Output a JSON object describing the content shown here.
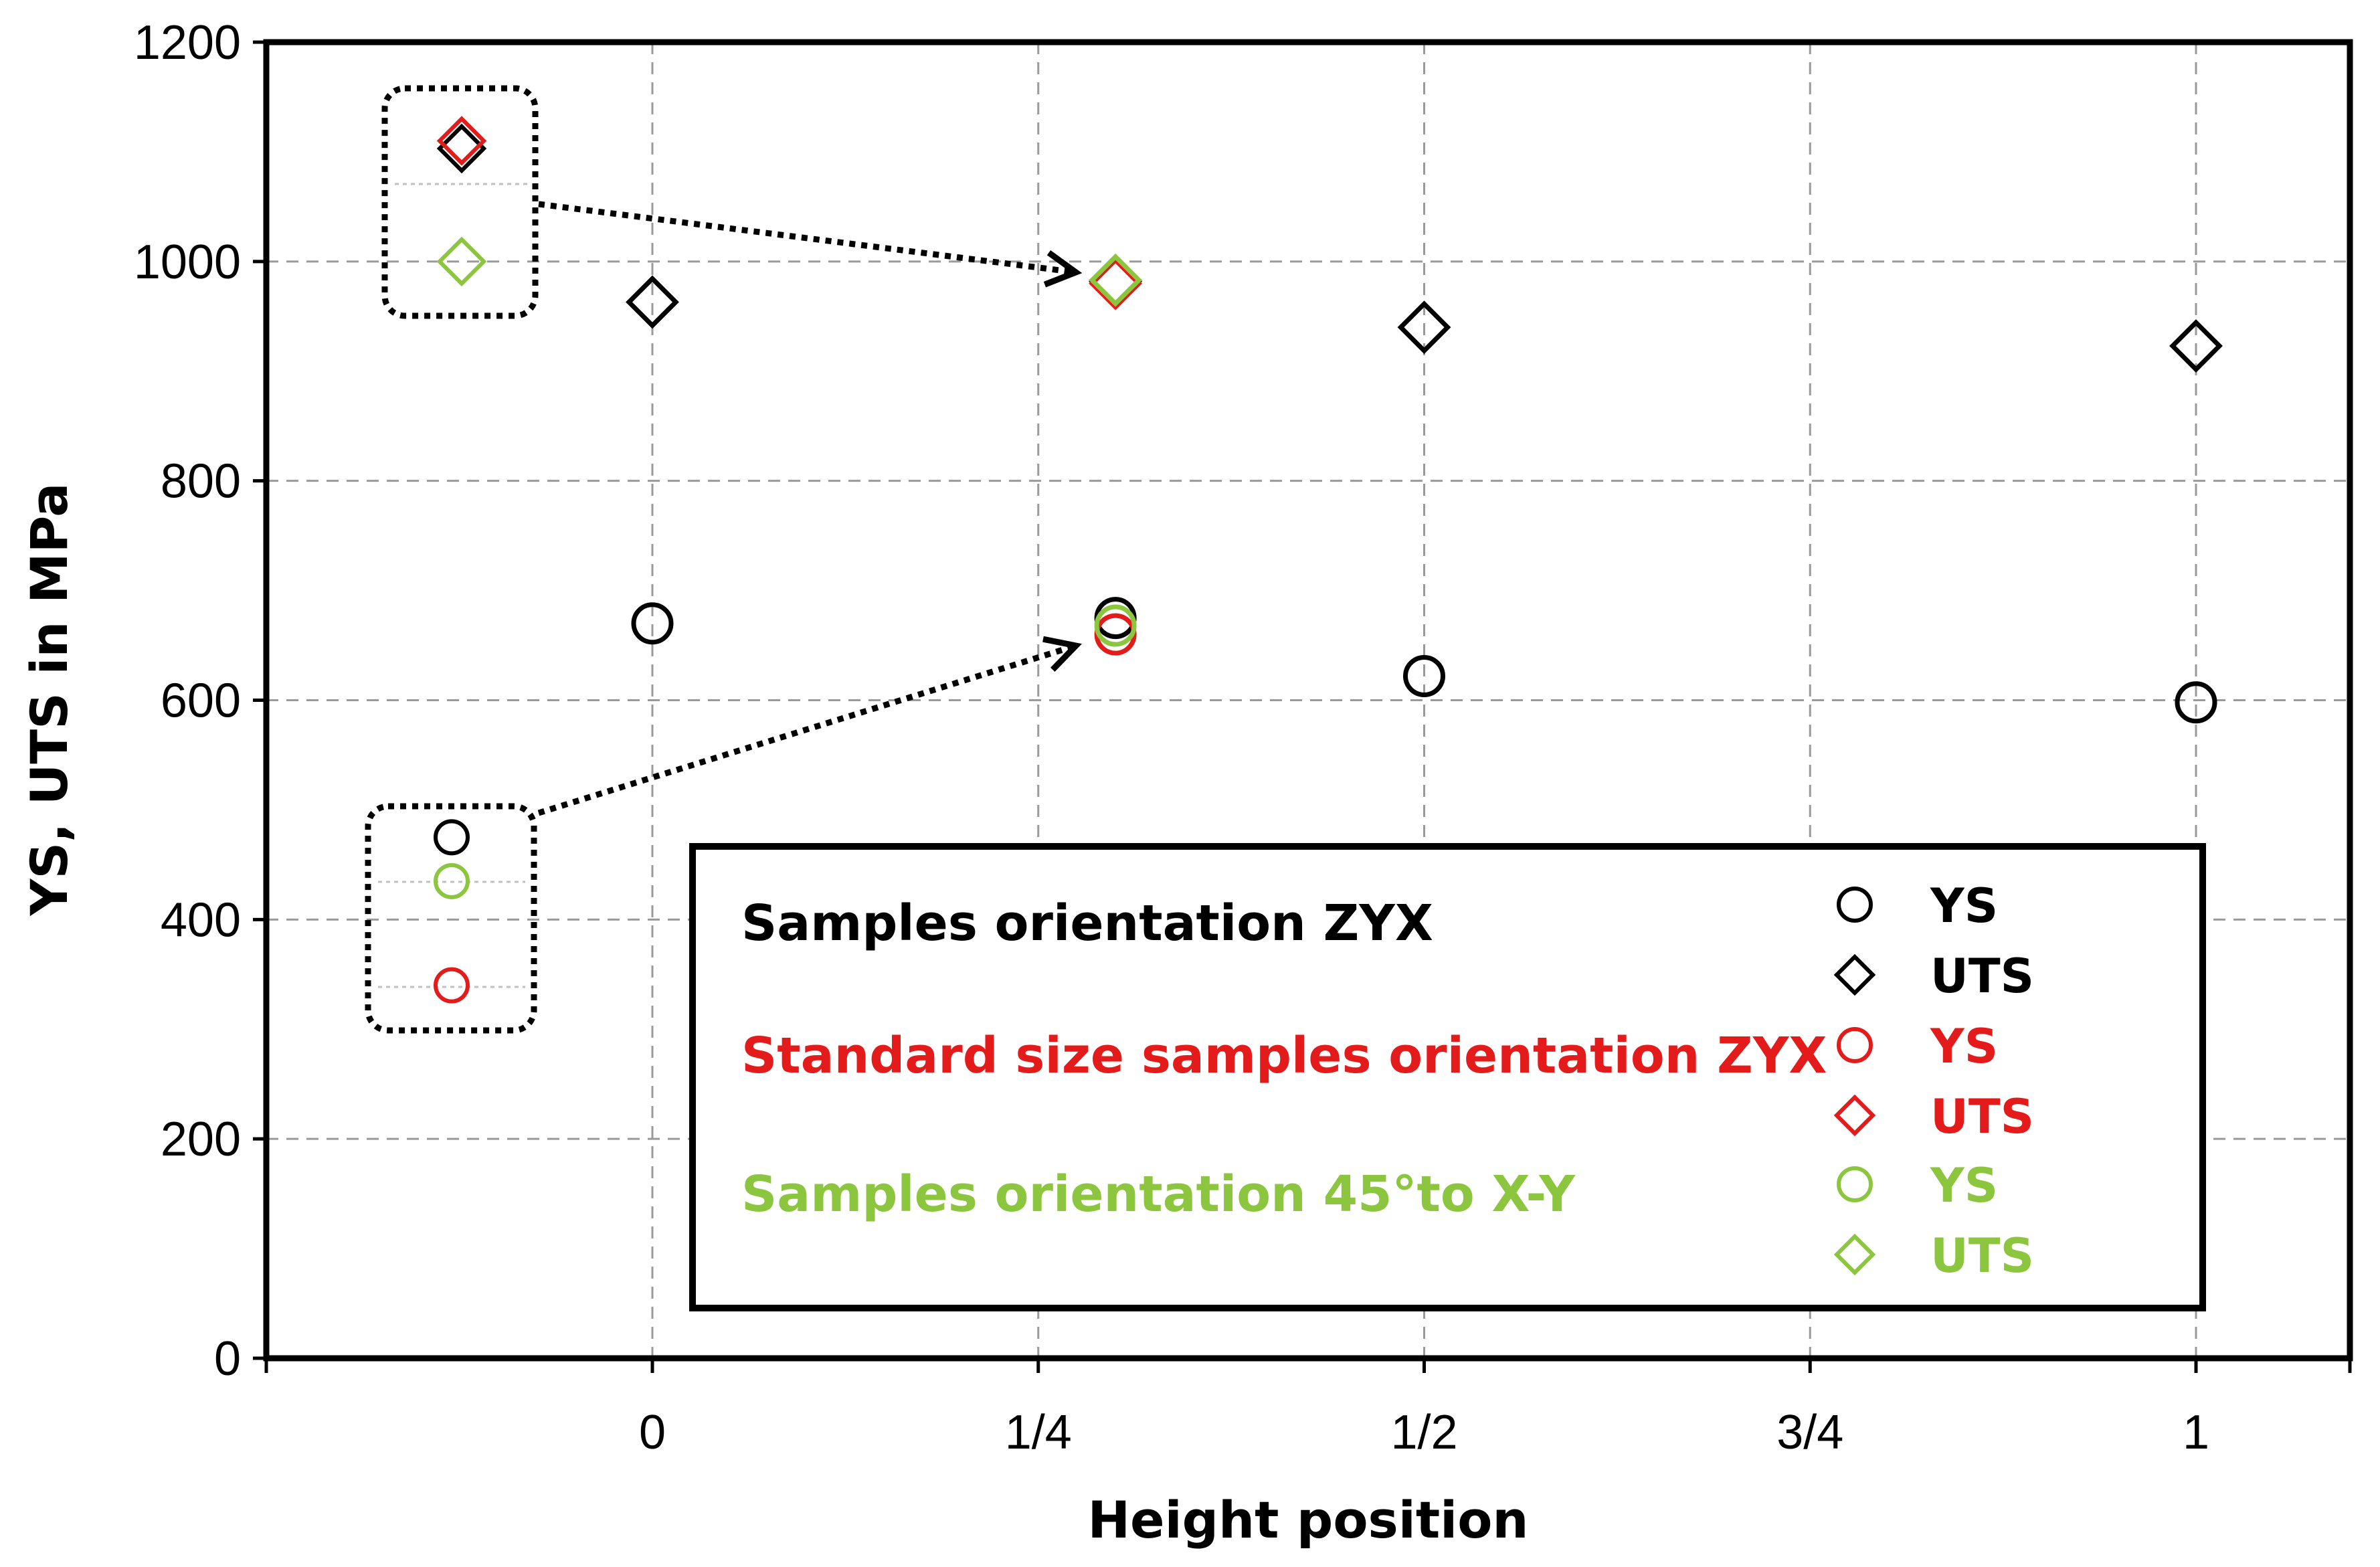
{
  "chart_data": {
    "type": "scatter",
    "xlabel": "Height position",
    "ylabel": "YS, UTS in MPa",
    "ylim": [
      0,
      1200
    ],
    "yticks": [
      "0",
      "200",
      "400",
      "600",
      "800",
      "1000",
      "1200"
    ],
    "xticks": [
      "0",
      "1/4",
      "1/2",
      "3/4",
      "1"
    ],
    "xtick_values": [
      0,
      0.25,
      0.5,
      0.75,
      1
    ],
    "xlim": [
      -0.25,
      1.1
    ],
    "grid": true,
    "series": [
      {
        "name": "YS",
        "group": "Samples orientation ZYX",
        "marker": "circle",
        "color": "#000000",
        "points": [
          [
            0,
            670
          ],
          [
            0.3,
            675
          ],
          [
            0.5,
            622
          ],
          [
            1,
            598
          ]
        ]
      },
      {
        "name": "UTS",
        "group": "Samples orientation ZYX",
        "marker": "diamond",
        "color": "#000000",
        "points": [
          [
            0,
            963
          ],
          [
            0.3,
            982
          ],
          [
            0.5,
            940
          ],
          [
            1,
            923
          ]
        ]
      },
      {
        "name": "YS",
        "group": "Standard size samples orientation ZYX",
        "marker": "circle",
        "color": "#e31b1b",
        "points": [
          [
            0.3,
            660
          ]
        ]
      },
      {
        "name": "UTS",
        "group": "Standard size samples orientation ZYX",
        "marker": "diamond",
        "color": "#e31b1b",
        "points": [
          [
            0.3,
            980
          ]
        ]
      },
      {
        "name": "YS",
        "group": "Samples orientation 45°to X-Y",
        "marker": "circle",
        "color": "#8cc63f",
        "points": [
          [
            0.3,
            668
          ]
        ]
      },
      {
        "name": "UTS",
        "group": "Samples orientation 45°to X-Y",
        "marker": "diamond",
        "color": "#8cc63f",
        "points": [
          [
            0.3,
            983
          ]
        ]
      }
    ],
    "inset_uts": [
      {
        "color": "#8cc63f",
        "value": 1000
      },
      {
        "color": "#000000",
        "value": 1103
      },
      {
        "color": "#e31b1b",
        "value": 1110
      }
    ],
    "inset_ys": [
      {
        "color": "#000000",
        "value": 475
      },
      {
        "color": "#8cc63f",
        "value": 435
      },
      {
        "color": "#e31b1b",
        "value": 340
      }
    ],
    "legend": {
      "groups": [
        {
          "label": "Samples orientation ZYX",
          "color": "#000000"
        },
        {
          "label": "Standard size samples orientation ZYX",
          "color": "#e31b1b"
        },
        {
          "label": "Samples orientation 45°to X-Y",
          "color": "#8cc63f"
        }
      ],
      "entries": [
        {
          "label": "YS",
          "marker": "circle",
          "color": "#000000"
        },
        {
          "label": "UTS",
          "marker": "diamond",
          "color": "#000000"
        },
        {
          "label": "YS",
          "marker": "circle",
          "color": "#e31b1b"
        },
        {
          "label": "UTS",
          "marker": "diamond",
          "color": "#e31b1b"
        },
        {
          "label": "YS",
          "marker": "circle",
          "color": "#8cc63f"
        },
        {
          "label": "UTS",
          "marker": "diamond",
          "color": "#8cc63f"
        }
      ]
    }
  }
}
